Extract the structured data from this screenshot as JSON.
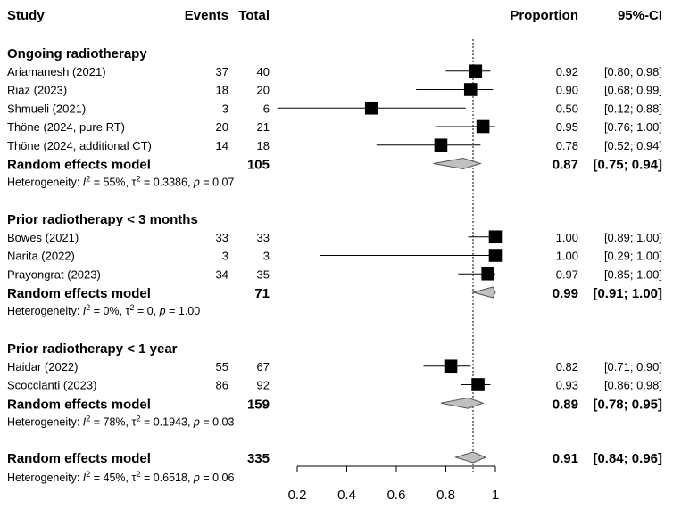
{
  "header": {
    "study": "Study",
    "events": "Events",
    "total": "Total",
    "proportion": "Proportion",
    "ci": "95%-CI"
  },
  "chart_data": {
    "type": "forest",
    "xlim": [
      0.2,
      1.0
    ],
    "x_ticks": [
      "0.2",
      "0.4",
      "0.6",
      "0.8",
      "1"
    ],
    "x_tick_values": [
      0.2,
      0.4,
      0.6,
      0.8,
      1.0
    ],
    "reference_line": 0.91,
    "groups": [
      {
        "title": "Ongoing radiotherapy",
        "studies": [
          {
            "study": "Ariamanesh (2021)",
            "events": "37",
            "total": "40",
            "prop": 0.92,
            "lo": 0.8,
            "hi": 0.98,
            "prop_text": "0.92",
            "ci_text": "[0.80; 0.98]",
            "weight": 0.85
          },
          {
            "study": "Riaz (2023)",
            "events": "18",
            "total": "20",
            "prop": 0.9,
            "lo": 0.68,
            "hi": 0.99,
            "prop_text": "0.90",
            "ci_text": "[0.68; 0.99]",
            "weight": 0.85
          },
          {
            "study": "Shmueli (2021)",
            "events": "3",
            "total": "6",
            "prop": 0.5,
            "lo": 0.12,
            "hi": 0.88,
            "prop_text": "0.50",
            "ci_text": "[0.12; 0.88]",
            "weight": 0.85
          },
          {
            "study": "Thöne (2024, pure RT)",
            "events": "20",
            "total": "21",
            "prop": 0.95,
            "lo": 0.76,
            "hi": 1.0,
            "prop_text": "0.95",
            "ci_text": "[0.76; 1.00]",
            "weight": 0.85
          },
          {
            "study": "Thöne (2024, additional CT)",
            "events": "14",
            "total": "18",
            "prop": 0.78,
            "lo": 0.52,
            "hi": 0.94,
            "prop_text": "0.78",
            "ci_text": "[0.52; 0.94]",
            "weight": 0.85
          }
        ],
        "random_effects": {
          "label": "Random effects model",
          "total": "105",
          "prop": 0.87,
          "lo": 0.75,
          "hi": 0.94,
          "prop_text": "0.87",
          "ci_text": "[0.75; 0.94]"
        },
        "heterogeneity": {
          "prefix": "Heterogeneity: ",
          "i2": " = 55%, ",
          "tau2": " = 0.3386, ",
          "p": " = 0.07"
        }
      },
      {
        "title": "Prior radiotherapy < 3 months",
        "studies": [
          {
            "study": "Bowes (2021)",
            "events": "33",
            "total": "33",
            "prop": 1.0,
            "lo": 0.89,
            "hi": 1.0,
            "prop_text": "1.00",
            "ci_text": "[0.89; 1.00]",
            "weight": 0.85
          },
          {
            "study": "Narita (2022)",
            "events": "3",
            "total": "3",
            "prop": 1.0,
            "lo": 0.29,
            "hi": 1.0,
            "prop_text": "1.00",
            "ci_text": "[0.29; 1.00]",
            "weight": 0.85
          },
          {
            "study": "Prayongrat (2023)",
            "events": "34",
            "total": "35",
            "prop": 0.97,
            "lo": 0.85,
            "hi": 1.0,
            "prop_text": "0.97",
            "ci_text": "[0.85; 1.00]",
            "weight": 0.85
          }
        ],
        "random_effects": {
          "label": "Random effects model",
          "total": "71",
          "prop": 0.99,
          "lo": 0.91,
          "hi": 1.0,
          "prop_text": "0.99",
          "ci_text": "[0.91; 1.00]"
        },
        "heterogeneity": {
          "prefix": "Heterogeneity: ",
          "i2": " = 0%, ",
          "tau2": " = 0, ",
          "p": " = 1.00"
        }
      },
      {
        "title": "Prior radiotherapy < 1 year",
        "studies": [
          {
            "study": "Haidar (2022)",
            "events": "55",
            "total": "67",
            "prop": 0.82,
            "lo": 0.71,
            "hi": 0.9,
            "prop_text": "0.82",
            "ci_text": "[0.71; 0.90]",
            "weight": 0.85
          },
          {
            "study": "Scoccianti (2023)",
            "events": "86",
            "total": "92",
            "prop": 0.93,
            "lo": 0.86,
            "hi": 0.98,
            "prop_text": "0.93",
            "ci_text": "[0.86; 0.98]",
            "weight": 0.85
          }
        ],
        "random_effects": {
          "label": "Random effects model",
          "total": "159",
          "prop": 0.89,
          "lo": 0.78,
          "hi": 0.95,
          "prop_text": "0.89",
          "ci_text": "[0.78; 0.95]"
        },
        "heterogeneity": {
          "prefix": "Heterogeneity: ",
          "i2": " = 78%, ",
          "tau2": " = 0.1943, ",
          "p": " = 0.03"
        }
      }
    ],
    "overall": {
      "label": "Random effects model",
      "total": "335",
      "prop": 0.91,
      "lo": 0.84,
      "hi": 0.96,
      "prop_text": "0.91",
      "ci_text": "[0.84; 0.96]",
      "heterogeneity": {
        "prefix": "Heterogeneity: ",
        "i2": " = 45%, ",
        "tau2": " = 0.6518, ",
        "p": " = 0.06"
      }
    },
    "colors": {
      "square": "#000000",
      "diamond_fill": "#c0c0c0",
      "diamond_stroke": "#555555",
      "line": "#000000"
    }
  }
}
